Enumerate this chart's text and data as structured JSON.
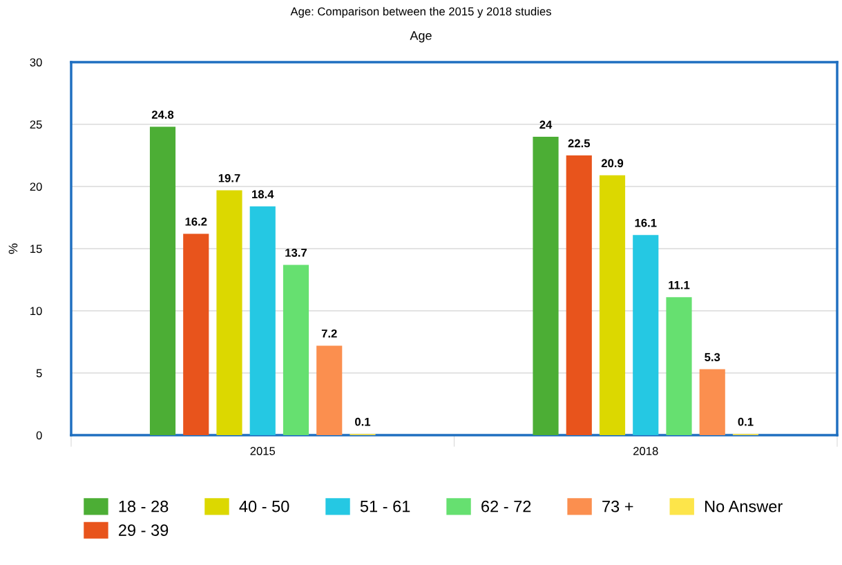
{
  "chart_data": {
    "type": "bar",
    "title": "Age: Comparison between the 2015 y 2018 studies",
    "subtitle": "Age",
    "ylabel": "%",
    "categories": [
      "2015",
      "2018"
    ],
    "series": [
      {
        "name": "18 - 28",
        "color": "#4cae35",
        "values": [
          24.8,
          24
        ]
      },
      {
        "name": "29 - 39",
        "color": "#e8541c",
        "values": [
          16.2,
          22.5
        ]
      },
      {
        "name": "40 - 50",
        "color": "#dcd800",
        "values": [
          19.7,
          20.9
        ]
      },
      {
        "name": "51 - 61",
        "color": "#25c8e3",
        "values": [
          18.4,
          16.1
        ]
      },
      {
        "name": "62 - 72",
        "color": "#66e070",
        "values": [
          13.7,
          11.1
        ]
      },
      {
        "name": "73 +",
        "color": "#fb8f4f",
        "values": [
          7.2,
          5.3
        ]
      },
      {
        "name": "No Answer",
        "color": "#fde54a",
        "values": [
          0.1,
          0.1
        ]
      }
    ],
    "ylim": [
      0,
      30
    ],
    "yticks": [
      0,
      5,
      10,
      15,
      20,
      25,
      30
    ],
    "grid": "y",
    "legend": "bottom",
    "data_labels": true
  }
}
